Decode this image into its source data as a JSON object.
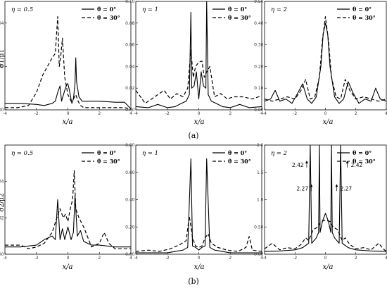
{
  "figure": {
    "row_a_label": "(a)",
    "row_b_label": "(b)",
    "xlabel": "x/a",
    "legend": [
      "θ = 0°",
      "θ = 30°"
    ]
  },
  "chart_data": [
    {
      "type": "line",
      "row": 0,
      "col": 0,
      "eta_label": "η = 0.5",
      "ylabel": "σ1/μ1",
      "xlim": [
        -4,
        4
      ],
      "ylim": [
        0,
        0.05
      ],
      "xticks": [
        -4,
        -2,
        0,
        2,
        4
      ],
      "yticks": [
        0,
        0.02,
        0.04
      ],
      "series": [
        {
          "name": "θ = 0°",
          "x": [
            -4,
            -3,
            -2,
            -1.5,
            -1,
            -0.8,
            -0.65,
            -0.5,
            -0.4,
            -0.2,
            -0.05,
            0,
            0.1,
            0.25,
            0.35,
            0.45,
            0.5,
            0.55,
            0.7,
            0.9,
            1.2,
            2,
            3,
            3.6,
            4
          ],
          "y": [
            0.003,
            0.003,
            0.0025,
            0.002,
            0.003,
            0.004,
            0.008,
            0.011,
            0.004,
            0.009,
            0.012,
            0.012,
            0.009,
            0.003,
            0.005,
            0.012,
            0.024,
            0.013,
            0.006,
            0.004,
            0.004,
            0.004,
            0.0035,
            0.0035,
            0.0005
          ]
        },
        {
          "name": "θ = 30°",
          "x": [
            -4,
            -3.2,
            -2.5,
            -2,
            -1.6,
            -1.3,
            -1.0,
            -0.8,
            -0.65,
            -0.55,
            -0.45,
            -0.35,
            -0.2,
            0,
            0.2,
            0.35,
            0.5,
            0.65,
            0.8,
            1.0,
            1.3,
            2,
            3,
            3.6,
            4
          ],
          "y": [
            0.001,
            0.001,
            0.002,
            0.008,
            0.016,
            0.02,
            0.024,
            0.026,
            0.043,
            0.02,
            0.025,
            0.033,
            0.015,
            0.007,
            0.004,
            0.005,
            0.007,
            0.004,
            0.002,
            0.001,
            0.001,
            0.001,
            0.001,
            0.001,
            0.0005
          ]
        }
      ]
    },
    {
      "type": "line",
      "row": 0,
      "col": 1,
      "eta_label": "η = 1",
      "ylabel": "",
      "xlim": [
        -4,
        4
      ],
      "ylim": [
        0,
        0.1
      ],
      "xticks": [
        -4,
        -2,
        0,
        2,
        4
      ],
      "yticks": [
        0,
        0.02,
        0.04,
        0.06,
        0.08,
        0.1
      ],
      "series": [
        {
          "name": "θ = 0°",
          "x": [
            -4,
            -3.2,
            -2.6,
            -2,
            -1.5,
            -1.1,
            -0.8,
            -0.6,
            -0.5,
            -0.45,
            -0.3,
            -0.15,
            0,
            0.15,
            0.3,
            0.45,
            0.5,
            0.6,
            0.8,
            1.1,
            1.5,
            2,
            2.6,
            3.2,
            4
          ],
          "y": [
            0.003,
            0.002,
            0.005,
            0.002,
            0.003,
            0.006,
            0.008,
            0.014,
            0.09,
            0.02,
            0.022,
            0.035,
            0.01,
            0.035,
            0.022,
            0.02,
            0.1,
            0.014,
            0.008,
            0.006,
            0.003,
            0.002,
            0.005,
            0.002,
            0.003
          ]
        },
        {
          "name": "θ = 30°",
          "x": [
            -4,
            -3.4,
            -2.8,
            -2.2,
            -1.8,
            -1.4,
            -1.0,
            -0.7,
            -0.5,
            -0.35,
            -0.2,
            0,
            0.2,
            0.35,
            0.5,
            0.7,
            1.0,
            1.4,
            1.8,
            2.2,
            2.8,
            3.4,
            4
          ],
          "y": [
            0.018,
            0.006,
            0.012,
            0.018,
            0.01,
            0.015,
            0.012,
            0.02,
            0.055,
            0.03,
            0.04,
            0.044,
            0.045,
            0.03,
            0.035,
            0.04,
            0.012,
            0.015,
            0.01,
            0.012,
            0.012,
            0.01,
            0.013
          ]
        }
      ]
    },
    {
      "type": "line",
      "row": 0,
      "col": 2,
      "eta_label": "η = 2",
      "ylabel": "",
      "xlim": [
        -4,
        4
      ],
      "ylim": [
        0,
        0.5
      ],
      "xticks": [
        -4,
        -2,
        0,
        2,
        4
      ],
      "yticks": [
        0,
        0.1,
        0.2,
        0.3,
        0.4,
        0.5
      ],
      "series": [
        {
          "name": "θ = 0°",
          "x": [
            -4,
            -3.6,
            -3.3,
            -3.0,
            -2.6,
            -2.2,
            -1.8,
            -1.5,
            -1.2,
            -0.9,
            -0.6,
            -0.3,
            -0.15,
            0,
            0.15,
            0.3,
            0.6,
            0.9,
            1.2,
            1.5,
            1.8,
            2.2,
            2.6,
            3.0,
            3.3,
            3.6,
            4
          ],
          "y": [
            0.04,
            0.05,
            0.09,
            0.04,
            0.05,
            0.03,
            0.08,
            0.12,
            0.05,
            0.03,
            0.06,
            0.2,
            0.35,
            0.4,
            0.35,
            0.2,
            0.06,
            0.03,
            0.05,
            0.13,
            0.08,
            0.03,
            0.05,
            0.04,
            0.1,
            0.05,
            0.04
          ]
        },
        {
          "name": "θ = 30°",
          "x": [
            -4,
            -3.5,
            -3.0,
            -2.5,
            -2.0,
            -1.6,
            -1.3,
            -1.0,
            -0.7,
            -0.4,
            -0.2,
            0,
            0.2,
            0.4,
            0.7,
            1.0,
            1.3,
            1.6,
            2.0,
            2.5,
            3.0,
            3.5,
            4
          ],
          "y": [
            0.05,
            0.04,
            0.05,
            0.06,
            0.05,
            0.09,
            0.14,
            0.05,
            0.06,
            0.15,
            0.32,
            0.43,
            0.32,
            0.15,
            0.06,
            0.05,
            0.14,
            0.09,
            0.05,
            0.06,
            0.05,
            0.04,
            0.05
          ]
        }
      ]
    },
    {
      "type": "line",
      "row": 1,
      "col": 0,
      "eta_label": "η = 0.5",
      "ylabel": "σ2/μ2",
      "xlim": [
        -4,
        4
      ],
      "ylim": [
        0,
        0.06
      ],
      "xticks": [
        -4,
        -2,
        0,
        2,
        4
      ],
      "yticks": [
        0,
        0.02,
        0.04
      ],
      "series": [
        {
          "name": "θ = 0°",
          "x": [
            -4,
            -3,
            -2,
            -1.5,
            -1.0,
            -0.8,
            -0.65,
            -0.5,
            -0.35,
            -0.2,
            0,
            0.2,
            0.35,
            0.45,
            0.6,
            0.8,
            1.0,
            1.5,
            2,
            3,
            4
          ],
          "y": [
            0.004,
            0.004,
            0.005,
            0.008,
            0.01,
            0.008,
            0.03,
            0.008,
            0.014,
            0.008,
            0.015,
            0.008,
            0.012,
            0.032,
            0.01,
            0.013,
            0.007,
            0.005,
            0.005,
            0.004,
            0.004
          ]
        },
        {
          "name": "θ = 30°",
          "x": [
            -4,
            -3,
            -2.5,
            -2,
            -1.5,
            -1.0,
            -0.7,
            -0.5,
            -0.3,
            -0.15,
            0,
            0.15,
            0.3,
            0.4,
            0.5,
            0.7,
            1.0,
            1.5,
            2.0,
            2.3,
            2.6,
            3,
            4
          ],
          "y": [
            0.005,
            0.005,
            0.003,
            0.004,
            0.006,
            0.012,
            0.02,
            0.025,
            0.02,
            0.022,
            0.018,
            0.025,
            0.03,
            0.046,
            0.025,
            0.02,
            0.015,
            0.004,
            0.006,
            0.012,
            0.006,
            0.003,
            0.003
          ]
        }
      ]
    },
    {
      "type": "line",
      "row": 1,
      "col": 1,
      "eta_label": "η = 1",
      "ylabel": "",
      "xlim": [
        -4,
        4
      ],
      "ylim": [
        0,
        0.8
      ],
      "xticks": [
        -4,
        -2,
        0,
        2,
        4
      ],
      "yticks": [
        0,
        0.2,
        0.4,
        0.6,
        0.8
      ],
      "series": [
        {
          "name": "θ = 0°",
          "x": [
            -4,
            -3,
            -2,
            -1.5,
            -1.0,
            -0.7,
            -0.5,
            -0.4,
            -0.2,
            0,
            0.2,
            0.4,
            0.5,
            0.7,
            1.0,
            1.5,
            2,
            3,
            4
          ],
          "y": [
            0.01,
            0.01,
            0.01,
            0.02,
            0.03,
            0.05,
            0.7,
            0.06,
            0.05,
            0.03,
            0.05,
            0.06,
            0.7,
            0.05,
            0.03,
            0.02,
            0.01,
            0.01,
            0.01
          ]
        },
        {
          "name": "θ = 30°",
          "x": [
            -4,
            -3.2,
            -2.5,
            -1.8,
            -1.2,
            -0.8,
            -0.6,
            -0.4,
            -0.2,
            0,
            0.2,
            0.4,
            0.6,
            0.8,
            1.2,
            1.8,
            2.5,
            3.0,
            3.2,
            3.4,
            4
          ],
          "y": [
            0.02,
            0.03,
            0.02,
            0.04,
            0.07,
            0.1,
            0.28,
            0.12,
            0.06,
            0.05,
            0.06,
            0.12,
            0.15,
            0.08,
            0.05,
            0.03,
            0.02,
            0.05,
            0.13,
            0.03,
            0.02
          ]
        }
      ]
    },
    {
      "type": "line",
      "row": 1,
      "col": 2,
      "eta_label": "η = 2",
      "ylabel": "",
      "xlim": [
        -4,
        4
      ],
      "ylim": [
        0,
        2.0
      ],
      "xticks": [
        -4,
        -2,
        0,
        2,
        4
      ],
      "yticks": [
        0,
        0.5,
        1.0,
        1.5,
        2.0
      ],
      "annotations": [
        "2.42",
        "2.42",
        "2.27",
        "2.27"
      ],
      "series": [
        {
          "name": "θ = 0°",
          "x": [
            -4,
            -3,
            -2,
            -1.5,
            -1.1,
            -1.0,
            -0.9,
            -0.6,
            -0.45,
            -0.4,
            -0.35,
            -0.2,
            0,
            0.2,
            0.35,
            0.4,
            0.45,
            0.6,
            0.9,
            1.0,
            1.1,
            1.5,
            2,
            3,
            4
          ],
          "y": [
            0.05,
            0.06,
            0.08,
            0.12,
            0.2,
            2.0,
            0.2,
            0.3,
            0.4,
            2.0,
            0.4,
            0.6,
            0.75,
            0.6,
            0.4,
            2.0,
            0.4,
            0.3,
            0.2,
            2.0,
            0.2,
            0.12,
            0.08,
            0.06,
            0.05
          ]
        },
        {
          "name": "θ = 30°",
          "x": [
            -4,
            -3.5,
            -3,
            -2.5,
            -2,
            -1.6,
            -1.3,
            -1.1,
            -0.8,
            -0.5,
            -0.3,
            0,
            0.3,
            0.5,
            0.8,
            1.1,
            1.3,
            1.6,
            2,
            2.5,
            3,
            3.5,
            3.8,
            4
          ],
          "y": [
            0.1,
            0.2,
            0.08,
            0.12,
            0.1,
            0.18,
            0.3,
            0.25,
            0.45,
            0.5,
            0.6,
            0.62,
            0.6,
            0.5,
            0.45,
            0.25,
            0.3,
            0.18,
            0.1,
            0.12,
            0.08,
            0.2,
            0.1,
            0.05
          ]
        }
      ]
    }
  ]
}
